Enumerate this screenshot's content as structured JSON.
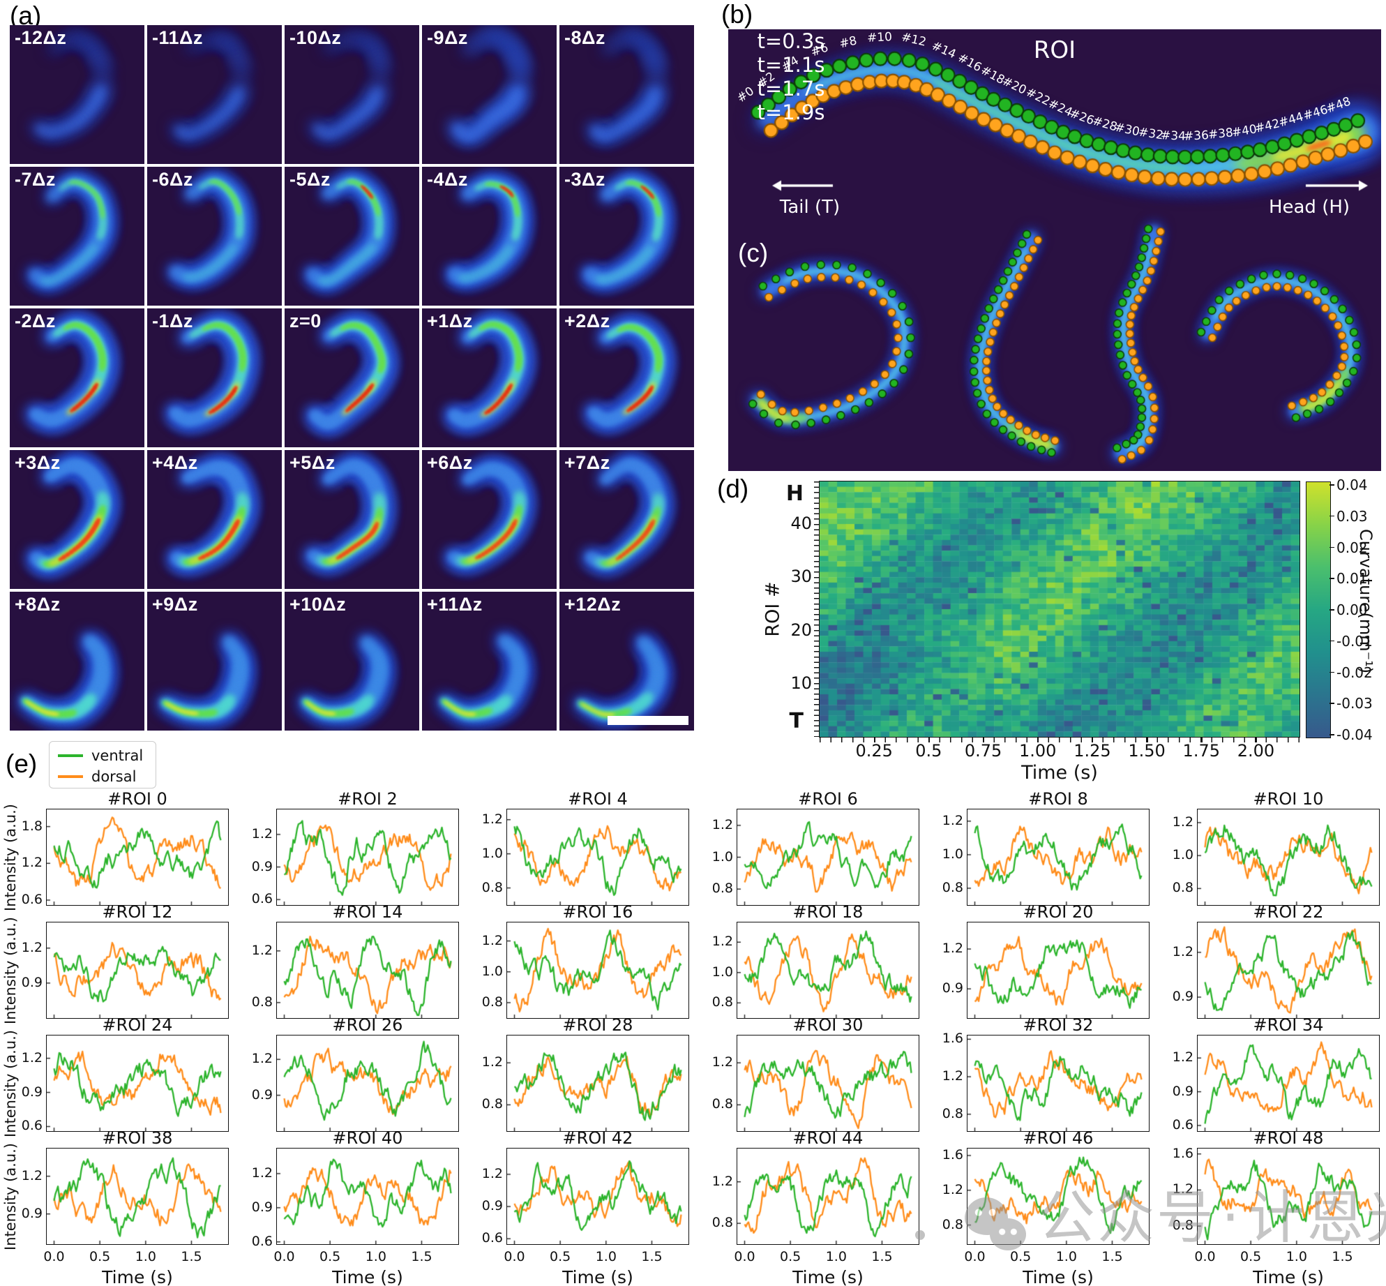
{
  "figure": {
    "panel_a": {
      "label": "(a)",
      "cell_labels": [
        "-12Δz",
        "-11Δz",
        "-10Δz",
        "-9Δz",
        "-8Δz",
        "-7Δz",
        "-6Δz",
        "-5Δz",
        "-4Δz",
        "-3Δz",
        "-2Δz",
        "-1Δz",
        "z=0",
        "+1Δz",
        "+2Δz",
        "+3Δz",
        "+4Δz",
        "+5Δz",
        "+6Δz",
        "+7Δz",
        "+8Δz",
        "+9Δz",
        "+10Δz",
        "+11Δz",
        "+12Δz"
      ]
    },
    "panel_b": {
      "label": "(b)",
      "title": "ROI",
      "tail": "Tail (T)",
      "head": "Head (H)",
      "roi_labels": [
        "#0",
        "#2",
        "#4",
        "#6",
        "#8",
        "#10",
        "#12",
        "#14",
        "#16",
        "#18",
        "#20",
        "#22",
        "#24",
        "#26",
        "#28",
        "#30",
        "#32",
        "#34",
        "#36",
        "#38",
        "#40",
        "#42",
        "#44",
        "#46",
        "#48"
      ]
    },
    "panel_c": {
      "label": "(c)",
      "time_labels": [
        "t=0.3s",
        "t=1.1s",
        "t=1.7s",
        "t=1.9s"
      ]
    },
    "panel_d": {
      "label": "(d)",
      "top": "H",
      "bottom": "T",
      "ylabel": "ROI #",
      "xlabel": "Time (s)",
      "yticks": [
        "40",
        "30",
        "20",
        "10"
      ],
      "xticks": [
        "0.25",
        "0.5",
        "0.75",
        "1.00",
        "1.25",
        "1.50",
        "1.75",
        "2.00"
      ],
      "time_range": [
        0,
        2.2
      ],
      "roi_range": [
        0,
        48
      ],
      "colorbar_label": "Curvature(mm⁻¹)",
      "colorbar_ticks": [
        "0.04",
        "0.03",
        "0.02",
        "0.01",
        "0.00",
        "-0.01",
        "-0.02",
        "-0.03",
        "-0.04"
      ],
      "value_range": [
        -0.04,
        0.04
      ]
    },
    "panel_e": {
      "label": "(e)",
      "ylabel": "Intensity (a.u.)",
      "xlabel": "Time (s)",
      "xticks": [
        "0.0",
        "0.5",
        "1.0",
        "1.5"
      ],
      "legend": [
        {
          "label": "ventral",
          "color": "#2cb42c"
        },
        {
          "label": "dorsal",
          "color": "#ff8c1a"
        }
      ],
      "plots": [
        {
          "title": "#ROI 0",
          "yticks": [
            "0.6",
            "1.2",
            "1.8"
          ],
          "ylim": [
            0.52,
            2.08
          ]
        },
        {
          "title": "#ROI 2",
          "yticks": [
            "0.6",
            "0.9",
            "1.2"
          ],
          "ylim": [
            0.55,
            1.43
          ]
        },
        {
          "title": "#ROI 4",
          "yticks": [
            "0.8",
            "1.0",
            "1.2"
          ],
          "ylim": [
            0.7,
            1.26
          ]
        },
        {
          "title": "#ROI 6",
          "yticks": [
            "0.8",
            "1.0",
            "1.2"
          ],
          "ylim": [
            0.7,
            1.3
          ]
        },
        {
          "title": "#ROI 8",
          "yticks": [
            "0.8",
            "1.0",
            "1.2"
          ],
          "ylim": [
            0.7,
            1.27
          ]
        },
        {
          "title": "#ROI 10",
          "yticks": [
            "0.8",
            "1.0",
            "1.2"
          ],
          "ylim": [
            0.7,
            1.28
          ]
        },
        {
          "title": "#ROI 12",
          "yticks": [
            "0.9",
            "1.2"
          ],
          "ylim": [
            0.6,
            1.42
          ]
        },
        {
          "title": "#ROI 14",
          "yticks": [
            "0.8",
            "1.2"
          ],
          "ylim": [
            0.68,
            1.42
          ]
        },
        {
          "title": "#ROI 16",
          "yticks": [
            "0.8",
            "1.0",
            "1.2"
          ],
          "ylim": [
            0.7,
            1.32
          ]
        },
        {
          "title": "#ROI 18",
          "yticks": [
            "0.8",
            "1.0",
            "1.2"
          ],
          "ylim": [
            0.7,
            1.33
          ]
        },
        {
          "title": "#ROI 20",
          "yticks": [
            "0.9",
            "1.2"
          ],
          "ylim": [
            0.68,
            1.4
          ]
        },
        {
          "title": "#ROI 22",
          "yticks": [
            "0.9",
            "1.2"
          ],
          "ylim": [
            0.76,
            1.4
          ]
        },
        {
          "title": "#ROI 24",
          "yticks": [
            "0.6",
            "0.9",
            "1.2"
          ],
          "ylim": [
            0.56,
            1.4
          ]
        },
        {
          "title": "#ROI 26",
          "yticks": [
            "0.9",
            "1.2"
          ],
          "ylim": [
            0.6,
            1.4
          ]
        },
        {
          "title": "#ROI 28",
          "yticks": [
            "0.8",
            "1.2"
          ],
          "ylim": [
            0.55,
            1.46
          ]
        },
        {
          "title": "#ROI 30",
          "yticks": [
            "0.8",
            "1.2"
          ],
          "ylim": [
            0.55,
            1.46
          ]
        },
        {
          "title": "#ROI 32",
          "yticks": [
            "0.8",
            "1.2",
            "1.6"
          ],
          "ylim": [
            0.62,
            1.64
          ]
        },
        {
          "title": "#ROI 34",
          "yticks": [
            "0.6",
            "0.9",
            "1.2"
          ],
          "ylim": [
            0.55,
            1.4
          ]
        },
        {
          "title": "#ROI 38",
          "yticks": [
            "0.9",
            "1.2"
          ],
          "ylim": [
            0.66,
            1.42
          ]
        },
        {
          "title": "#ROI 40",
          "yticks": [
            "0.6",
            "0.9",
            "1.2"
          ],
          "ylim": [
            0.58,
            1.42
          ]
        },
        {
          "title": "#ROI 42",
          "yticks": [
            "0.6",
            "0.9",
            "1.2"
          ],
          "ylim": [
            0.55,
            1.44
          ]
        },
        {
          "title": "#ROI 44",
          "yticks": [
            "0.8",
            "1.2"
          ],
          "ylim": [
            0.6,
            1.52
          ]
        },
        {
          "title": "#ROI 46",
          "yticks": [
            "0.8",
            "1.2",
            "1.6"
          ],
          "ylim": [
            0.58,
            1.68
          ]
        },
        {
          "title": "#ROI 48",
          "yticks": [
            "0.8",
            "1.2",
            "1.6"
          ],
          "ylim": [
            0.6,
            1.66
          ]
        }
      ]
    }
  },
  "watermark": {
    "prefix": "公众号",
    "separator": "·",
    "name": "计恩光益"
  },
  "colors": {
    "panel_background": "#2a1142",
    "cell_background": "#271040",
    "ventral_line": "#2cb42c",
    "dorsal_line": "#ff8c1a",
    "marker_green": "#22b422",
    "marker_orange": "#ffa41e"
  }
}
